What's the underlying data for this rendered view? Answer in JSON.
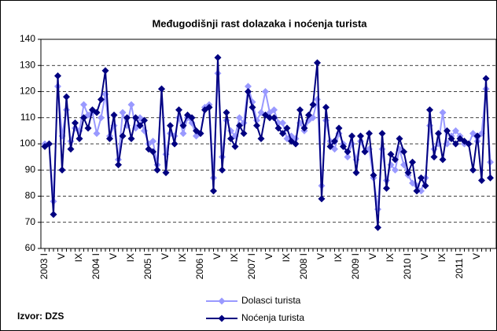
{
  "chart_data": {
    "type": "line",
    "title": "Međugodišnji rast dolazaka i noćenja turista",
    "source": "Izvor: DZS",
    "categories": [
      "2003 I",
      null,
      null,
      null,
      "V",
      null,
      null,
      null,
      "IX",
      null,
      null,
      null,
      "2004 I",
      null,
      null,
      null,
      "V",
      null,
      null,
      null,
      "IX",
      null,
      null,
      null,
      "2005 I",
      null,
      null,
      null,
      "V",
      null,
      null,
      null,
      "IX",
      null,
      null,
      null,
      "2006 I",
      null,
      null,
      null,
      "V",
      null,
      null,
      null,
      "IX",
      null,
      null,
      null,
      "2007 I",
      null,
      null,
      null,
      "V",
      null,
      null,
      null,
      "IX",
      null,
      null,
      null,
      "2008 I",
      null,
      null,
      null,
      "V",
      null,
      null,
      null,
      "IX",
      null,
      null,
      null,
      "2009 I",
      null,
      null,
      null,
      "V",
      null,
      null,
      null,
      "IX",
      null,
      null,
      null,
      "2010 I",
      null,
      null,
      null,
      "V",
      null,
      null,
      null,
      "IX",
      null,
      null,
      null,
      "2011 I",
      null,
      null,
      null,
      "V",
      null,
      null,
      null
    ],
    "series": [
      {
        "name": "Dolasci turista",
        "color": "#9999ff",
        "values": [
          100,
          100,
          78,
          122,
          103,
          113,
          101,
          106,
          105,
          115,
          111,
          112,
          104,
          110,
          119,
          103,
          107,
          94,
          112,
          107,
          115,
          106,
          110,
          105,
          100,
          101,
          92,
          121,
          96,
          104,
          103,
          110,
          104,
          110,
          108,
          103,
          104,
          114,
          115,
          87,
          127,
          95,
          109,
          105,
          103,
          110,
          108,
          122,
          116,
          109,
          112,
          120,
          112,
          113,
          108,
          108,
          102,
          103,
          102,
          108,
          105,
          109,
          110,
          117,
          84,
          109,
          101,
          98,
          104,
          100,
          95,
          100,
          94,
          101,
          97,
          98,
          87,
          75,
          98,
          86,
          92,
          90,
          98,
          92,
          88,
          85,
          84,
          82,
          87,
          107,
          98,
          100,
          112,
          100,
          103,
          105,
          103,
          100,
          100,
          104,
          101,
          104,
          121,
          93
        ]
      },
      {
        "name": "Noćenja turista",
        "color": "#000080",
        "values": [
          99,
          100,
          73,
          126,
          90,
          118,
          98,
          108,
          102,
          110,
          106,
          113,
          112,
          117,
          128,
          102,
          111,
          92,
          103,
          110,
          102,
          110,
          107,
          109,
          98,
          97,
          90,
          121,
          89,
          107,
          100,
          113,
          107,
          111,
          110,
          105,
          104,
          113,
          114,
          82,
          133,
          90,
          112,
          102,
          99,
          107,
          104,
          120,
          114,
          107,
          102,
          111,
          110,
          110,
          106,
          104,
          106,
          101,
          100,
          113,
          106,
          111,
          115,
          131,
          79,
          114,
          99,
          101,
          106,
          99,
          97,
          103,
          89,
          103,
          97,
          104,
          88,
          68,
          104,
          83,
          96,
          94,
          102,
          97,
          89,
          93,
          82,
          87,
          84,
          113,
          95,
          104,
          94,
          105,
          102,
          100,
          102,
          101,
          100,
          90,
          103,
          86,
          125,
          87
        ]
      }
    ],
    "ylim": [
      60,
      140
    ],
    "yticks": [
      60,
      70,
      80,
      90,
      100,
      110,
      120,
      130,
      140
    ],
    "grid": true
  }
}
